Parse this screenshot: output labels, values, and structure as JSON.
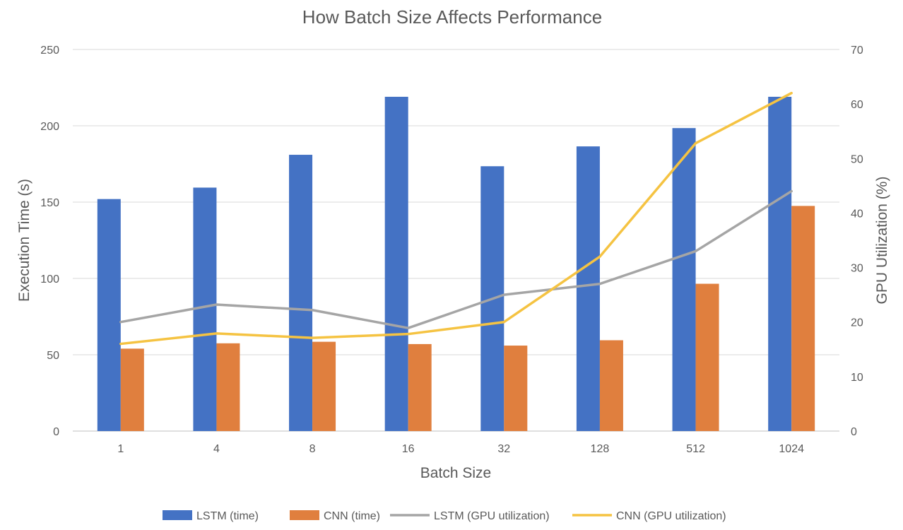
{
  "chart_data": {
    "type": "bar",
    "title": "How Batch Size Affects Performance",
    "xlabel": "Batch Size",
    "ylabel": "Execution Time (s)",
    "y2label": "GPU Utilization (%)",
    "categories": [
      "1",
      "4",
      "8",
      "16",
      "32",
      "128",
      "512",
      "1024"
    ],
    "ylim": [
      0,
      250
    ],
    "yticks": [
      0,
      50,
      100,
      150,
      200,
      250
    ],
    "y2lim": [
      0,
      70
    ],
    "y2ticks": [
      0,
      10,
      20,
      30,
      40,
      50,
      60,
      70
    ],
    "grid": true,
    "legend_position": "bottom",
    "series": [
      {
        "name": "LSTM (time)",
        "kind": "bar",
        "axis": "left",
        "color": "#4472C4",
        "values": [
          152,
          159.5,
          181,
          219,
          173.5,
          186.5,
          198.5,
          219
        ]
      },
      {
        "name": "CNN (time)",
        "kind": "bar",
        "axis": "left",
        "color": "#E07F3E",
        "values": [
          54,
          57.5,
          58.5,
          57,
          56,
          59.5,
          96.5,
          147.5
        ]
      },
      {
        "name": "LSTM (GPU utilization)",
        "kind": "line",
        "axis": "right",
        "color": "#A5A5A5",
        "values": [
          20,
          23.2,
          22.2,
          18.9,
          25,
          27,
          33,
          44
        ]
      },
      {
        "name": "CNN (GPU utilization)",
        "kind": "line",
        "axis": "right",
        "color": "#F5C342",
        "values": [
          16,
          17.9,
          17.1,
          17.8,
          20,
          32,
          52.8,
          62
        ]
      }
    ]
  }
}
